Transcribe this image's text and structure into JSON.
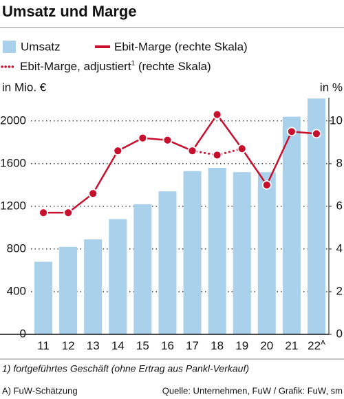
{
  "chart_data": {
    "type": "bar",
    "title": "Umsatz und Marge",
    "y_label": "in Mio. €",
    "y2_label": "in %",
    "categories": [
      "11",
      "12",
      "13",
      "14",
      "15",
      "16",
      "17",
      "18",
      "19",
      "20",
      "21",
      "22"
    ],
    "x_superscripts": [
      null,
      null,
      null,
      null,
      null,
      null,
      null,
      null,
      null,
      null,
      null,
      "A"
    ],
    "series": [
      {
        "name": "Umsatz",
        "type": "bar",
        "color": "#a9d1ec",
        "values": [
          680,
          820,
          890,
          1080,
          1220,
          1340,
          1530,
          1560,
          1520,
          1520,
          2040,
          2210
        ]
      },
      {
        "name": "Ebit-Marge (rechte Skala)",
        "type": "line",
        "axis": "y2",
        "color": "#c8102e",
        "dash": "solid",
        "values": [
          5.7,
          5.7,
          6.6,
          8.6,
          9.2,
          9.1,
          8.6,
          10.3,
          8.7,
          7.0,
          9.5,
          9.4
        ]
      },
      {
        "name": "Ebit-Marge, adjustiert",
        "name_superscript": "1",
        "name_suffix": " (rechte Skala)",
        "type": "line",
        "axis": "y2",
        "color": "#c8102e",
        "dash": "dotted",
        "values": [
          null,
          null,
          null,
          null,
          null,
          null,
          8.6,
          8.4,
          8.7,
          null,
          null,
          null
        ]
      }
    ],
    "ylim": [
      0,
      2250
    ],
    "yticks": [
      0,
      400,
      800,
      1200,
      1600,
      2000
    ],
    "y2lim": [
      0,
      11.25
    ],
    "y2ticks": [
      0,
      2,
      4,
      6,
      8,
      10
    ],
    "grid": true,
    "footnote": "1) fortgeführtes Geschäft (ohne Ertrag aus Pankl-Verkauf)",
    "note": "A) FuW-Schätzung",
    "source": "Quelle: Unternehmen, FuW / Grafik: FuW, sm"
  }
}
